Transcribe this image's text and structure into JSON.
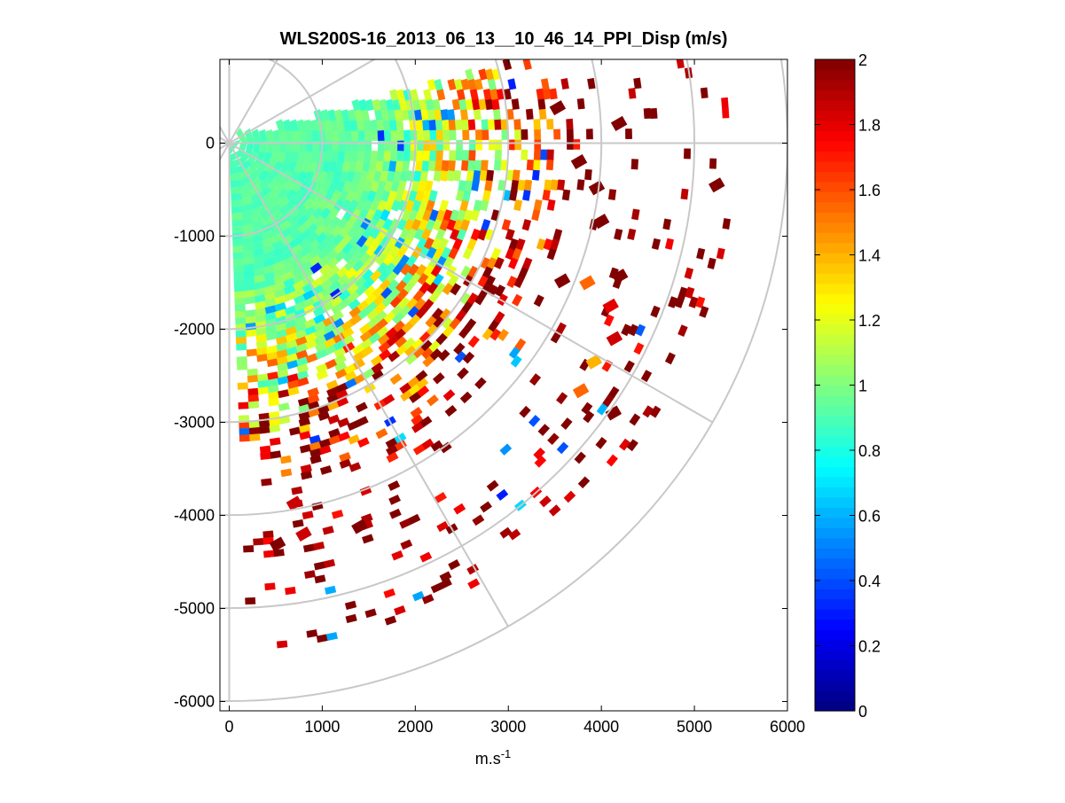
{
  "chart_data": {
    "type": "heatmap",
    "subtype": "polar-ppi-scan",
    "title": "WLS200S-16_2013_06_13__10_46_14_PPI_Disp (m/s)",
    "xlabel_main": "m.s",
    "xlabel_sup": "-1",
    "ylabel": "",
    "xlim": [
      -100,
      6000
    ],
    "ylim": [
      -6100,
      900
    ],
    "x_ticks": [
      0,
      1000,
      2000,
      3000,
      4000,
      5000,
      6000
    ],
    "x_tick_labels": [
      "0",
      "1000",
      "2000",
      "3000",
      "4000",
      "5000",
      "6000"
    ],
    "y_ticks": [
      0,
      -1000,
      -2000,
      -3000,
      -4000,
      -5000,
      -6000
    ],
    "y_tick_labels": [
      "0",
      "-1000",
      "-2000",
      "-3000",
      "-4000",
      "-5000",
      "-6000"
    ],
    "polar_grid": {
      "origin": [
        0,
        0
      ],
      "ring_radii": [
        1000,
        2000,
        3000,
        4000,
        5000,
        6000
      ],
      "spoke_angles_deg": [
        0,
        30,
        60,
        90,
        120,
        150,
        180,
        210,
        240,
        270,
        300,
        330
      ],
      "color": "#c8c8c8"
    },
    "scan_sector": {
      "az_from_deg": -88,
      "az_to_deg": 15,
      "max_range_m": 5400,
      "notes": "Core sector near 0.9 m/s (cyan-green); speckle increases with range, reaching 2 m/s (dark red) at outer edge."
    },
    "value_profile": {
      "range_m": [
        0,
        1000,
        1500,
        2000,
        2500,
        3000,
        3500,
        4000
      ],
      "median_value": [
        0.9,
        0.92,
        0.95,
        1.05,
        1.3,
        1.6,
        1.9,
        2.0
      ],
      "spread": [
        0.04,
        0.06,
        0.1,
        0.25,
        0.45,
        0.6,
        0.5,
        0.3
      ],
      "coverage": [
        1.0,
        1.0,
        0.98,
        0.9,
        0.7,
        0.45,
        0.2,
        0.08
      ]
    },
    "outlier_cells": [
      {
        "x": 520,
        "y": -4310,
        "v": 2.0
      },
      {
        "x": 800,
        "y": -4200,
        "v": 1.85
      },
      {
        "x": 1400,
        "y": -4120,
        "v": 2.0
      },
      {
        "x": 700,
        "y": -3870,
        "v": 1.85
      },
      {
        "x": 3580,
        "y": -1480,
        "v": 2.0
      },
      {
        "x": 3850,
        "y": -1500,
        "v": 1.55
      },
      {
        "x": 4100,
        "y": -1750,
        "v": 1.8
      },
      {
        "x": 4200,
        "y": -1430,
        "v": 2.0
      },
      {
        "x": 4140,
        "y": -2100,
        "v": 1.85
      },
      {
        "x": 3920,
        "y": -2350,
        "v": 1.4
      },
      {
        "x": 3780,
        "y": -2660,
        "v": 1.55
      },
      {
        "x": 4130,
        "y": -2900,
        "v": 2.0
      },
      {
        "x": 5240,
        "y": -450,
        "v": 2.0
      },
      {
        "x": 3950,
        "y": -480,
        "v": 2.0
      },
      {
        "x": 3760,
        "y": -200,
        "v": 2.0
      },
      {
        "x": 4000,
        "y": -840,
        "v": 2.0
      },
      {
        "x": 4190,
        "y": 210,
        "v": 2.0
      },
      {
        "x": 3530,
        "y": 380,
        "v": 2.0
      }
    ],
    "colorbar": {
      "colormap": "jet",
      "range": [
        0,
        2
      ],
      "ticks": [
        0,
        0.2,
        0.4,
        0.6,
        0.8,
        1,
        1.2,
        1.4,
        1.6,
        1.8,
        2
      ],
      "tick_labels": [
        "0",
        "0.2",
        "0.4",
        "0.6",
        "0.8",
        "1",
        "1.2",
        "1.4",
        "1.6",
        "1.8",
        "2"
      ]
    },
    "grid": false,
    "legend": "none"
  }
}
